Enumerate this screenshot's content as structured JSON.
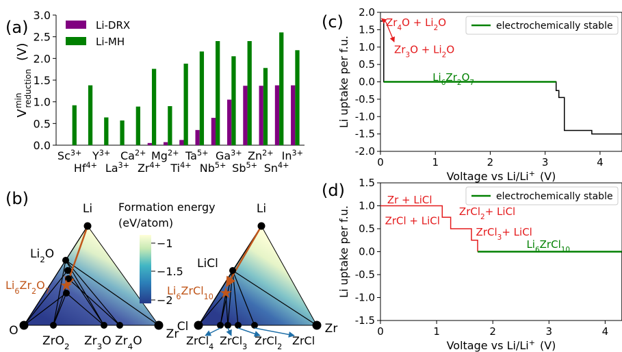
{
  "panel_labels": {
    "a": "(a)",
    "b": "(b)",
    "c": "(c)",
    "d": "(d)"
  },
  "colors": {
    "li_drx": "#800080",
    "li_mh": "#008000",
    "red": "#e41a1c",
    "orange": "#c0561a",
    "blue": "#1f6fa8",
    "black": "#000000"
  },
  "chart_data": [
    {
      "panel": "a",
      "type": "bar",
      "ylabel": "V",
      "ylabel_sup": "min",
      "ylabel_sub": "reduction",
      "ylabel_unit": "(V)",
      "ylim": [
        0,
        3.0
      ],
      "yticks": [
        "0.0",
        "0.5",
        "1.0",
        "1.5",
        "2.0",
        "2.5",
        "3.0"
      ],
      "legend_position": "top-left",
      "categories": [
        {
          "base": "Sc",
          "sup": "3+"
        },
        {
          "base": "Hf",
          "sup": "4+"
        },
        {
          "base": "Y",
          "sup": "3+"
        },
        {
          "base": "La",
          "sup": "3+"
        },
        {
          "base": "Ca",
          "sup": "2+"
        },
        {
          "base": "Zr",
          "sup": "4+"
        },
        {
          "base": "Mg",
          "sup": "2+"
        },
        {
          "base": "Ti",
          "sup": "4+"
        },
        {
          "base": "Ta",
          "sup": "5+"
        },
        {
          "base": "Nb",
          "sup": "5+"
        },
        {
          "base": "Ga",
          "sup": "3+"
        },
        {
          "base": "Sb",
          "sup": "5+"
        },
        {
          "base": "Zn",
          "sup": "2+"
        },
        {
          "base": "Sn",
          "sup": "4+"
        },
        {
          "base": "In",
          "sup": "3+"
        }
      ],
      "series": [
        {
          "name": "Li-DRX",
          "color": "#800080",
          "values": [
            0,
            0,
            0,
            0,
            0,
            0.05,
            0.07,
            0.12,
            0.35,
            0.63,
            1.05,
            1.37,
            1.37,
            1.38,
            1.38
          ]
        },
        {
          "name": "Li-MH",
          "color": "#008000",
          "values": [
            0.92,
            1.38,
            0.64,
            0.57,
            0.89,
            1.76,
            0.9,
            1.88,
            2.16,
            2.4,
            2.05,
            2.4,
            1.78,
            2.6,
            2.19
          ]
        }
      ]
    },
    {
      "panel": "c",
      "type": "line",
      "xlabel": "Voltage vs Li/Li",
      "xlabel_sup": "+",
      "xlabel_unit": "(V)",
      "ylabel": "Li uptake per f.u.",
      "xlim": [
        0,
        4.4
      ],
      "ylim": [
        -2.0,
        2.0
      ],
      "xticks": [
        "0",
        "1",
        "2",
        "3",
        "4"
      ],
      "yticks": [
        "-2.0",
        "-1.5",
        "-1.0",
        "-0.5",
        "0.0",
        "0.5",
        "1.0",
        "1.5",
        "2.0"
      ],
      "legend": "electrochemically stable",
      "legend_position": "top-right",
      "stable_segment": {
        "x": [
          0.06,
          3.2
        ],
        "y": 0
      },
      "step_black": [
        [
          0,
          1.75
        ],
        [
          0.06,
          1.75
        ],
        [
          0.06,
          1.0
        ],
        [
          0.06,
          0
        ],
        [
          0.06,
          0
        ],
        [
          3.2,
          0
        ],
        [
          3.2,
          -0.25
        ],
        [
          3.25,
          -0.25
        ],
        [
          3.25,
          -0.45
        ],
        [
          3.35,
          -0.45
        ],
        [
          3.35,
          -1.4
        ],
        [
          3.85,
          -1.4
        ],
        [
          3.85,
          -1.5
        ],
        [
          4.4,
          -1.5
        ]
      ],
      "annotations": [
        {
          "parts": [
            [
              "Zr",
              ""
            ],
            [
              "4",
              "sub"
            ],
            [
              "O + Li",
              ""
            ],
            [
              "2",
              "sub"
            ],
            [
              "O",
              ""
            ]
          ],
          "x": 0.1,
          "y": 1.72
        },
        {
          "parts": [
            [
              "Zr",
              ""
            ],
            [
              "3",
              "sub"
            ],
            [
              "O + Li",
              ""
            ],
            [
              "2",
              "sub"
            ],
            [
              "O",
              ""
            ]
          ],
          "x": 0.25,
          "y": 0.95
        },
        {
          "parts": [
            [
              "Li",
              ""
            ],
            [
              "6",
              "sub"
            ],
            [
              "Zr",
              ""
            ],
            [
              "2",
              "sub"
            ],
            [
              "O",
              ""
            ],
            [
              "7",
              "sub"
            ]
          ],
          "x": 0.95,
          "y": 0.15,
          "green": true
        }
      ]
    },
    {
      "panel": "d",
      "type": "line",
      "xlabel": "Voltage vs Li/Li",
      "xlabel_sup": "+",
      "xlabel_unit": "(V)",
      "ylabel": "Li uptake per f.u.",
      "xlim": [
        0,
        4.3
      ],
      "ylim": [
        -1.5,
        1.5
      ],
      "xticks": [
        "0",
        "1",
        "2",
        "3",
        "4"
      ],
      "yticks": [
        "-1.5",
        "-1.0",
        "-0.5",
        "0.0",
        "0.5",
        "1.0",
        "1.5"
      ],
      "legend": "electrochemically stable",
      "legend_position": "top-right",
      "stable_segment": {
        "x": [
          1.73,
          4.3
        ],
        "y": 0
      },
      "step_red": [
        [
          0,
          1.0
        ],
        [
          1.1,
          1.0
        ],
        [
          1.1,
          0.75
        ],
        [
          1.25,
          0.75
        ],
        [
          1.25,
          0.5
        ],
        [
          1.62,
          0.5
        ],
        [
          1.62,
          0.25
        ],
        [
          1.73,
          0.25
        ],
        [
          1.73,
          0
        ]
      ],
      "annotations": [
        {
          "parts": [
            [
              "Zr + LiCl",
              ""
            ]
          ],
          "x": 0.12,
          "y": 1.05
        },
        {
          "parts": [
            [
              "ZrCl + LiCl",
              ""
            ]
          ],
          "x": 0.08,
          "y": 0.6
        },
        {
          "parts": [
            [
              "ZrCl",
              ""
            ],
            [
              "2",
              "sub"
            ],
            [
              "+ LiCl",
              ""
            ]
          ],
          "x": 1.4,
          "y": 0.8
        },
        {
          "parts": [
            [
              "ZrCl",
              ""
            ],
            [
              "3",
              "sub"
            ],
            [
              "+ LiCl",
              ""
            ]
          ],
          "x": 1.7,
          "y": 0.35
        },
        {
          "parts": [
            [
              "Li",
              ""
            ],
            [
              "6",
              "sub"
            ],
            [
              "ZrCl",
              ""
            ],
            [
              "10",
              "sub"
            ]
          ],
          "x": 2.6,
          "y": 0.08,
          "green": true
        }
      ]
    },
    {
      "panel": "b",
      "type": "heatmap",
      "colorbar_title": "Formation energy",
      "colorbar_unit": "(eV/atom)",
      "colorbar_ticks": [
        "−1",
        "−1.5",
        "−2"
      ],
      "colorbar_values": [
        -1,
        -1.5,
        -2
      ],
      "left": {
        "vertices": [
          "Li",
          "O",
          "Zr"
        ],
        "target": [
          [
            "Li",
            ""
          ],
          [
            "6",
            "sub"
          ],
          [
            "Zr",
            ""
          ],
          [
            "2",
            "sub"
          ],
          [
            "O",
            ""
          ],
          [
            "7",
            "sub"
          ]
        ],
        "labels": [
          {
            "parts": [
              [
                "Li",
                ""
              ],
              [
                "2",
                "sub"
              ],
              [
                "O",
                ""
              ]
            ]
          },
          {
            "parts": [
              [
                "ZrO",
                ""
              ],
              [
                "2",
                "sub"
              ]
            ]
          },
          {
            "parts": [
              [
                "Zr",
                ""
              ],
              [
                "3",
                "sub"
              ],
              [
                "O",
                ""
              ]
            ]
          },
          {
            "parts": [
              [
                "Zr",
                ""
              ],
              [
                "4",
                "sub"
              ],
              [
                "O",
                ""
              ]
            ]
          }
        ]
      },
      "right": {
        "vertices": [
          "Li",
          "Cl",
          "Zr"
        ],
        "target": [
          [
            "Li",
            ""
          ],
          [
            "6",
            "sub"
          ],
          [
            "ZrCl",
            ""
          ],
          [
            "10",
            "sub"
          ]
        ],
        "labels": [
          {
            "parts": [
              [
                "LiCl",
                ""
              ]
            ]
          },
          {
            "parts": [
              [
                "ZrCl",
                ""
              ],
              [
                "4",
                "sub"
              ]
            ]
          },
          {
            "parts": [
              [
                "ZrCl",
                ""
              ],
              [
                "3",
                "sub"
              ]
            ]
          },
          {
            "parts": [
              [
                "ZrCl",
                ""
              ],
              [
                "2",
                "sub"
              ]
            ]
          },
          {
            "parts": [
              [
                "ZrCl",
                ""
              ]
            ]
          }
        ]
      }
    }
  ]
}
